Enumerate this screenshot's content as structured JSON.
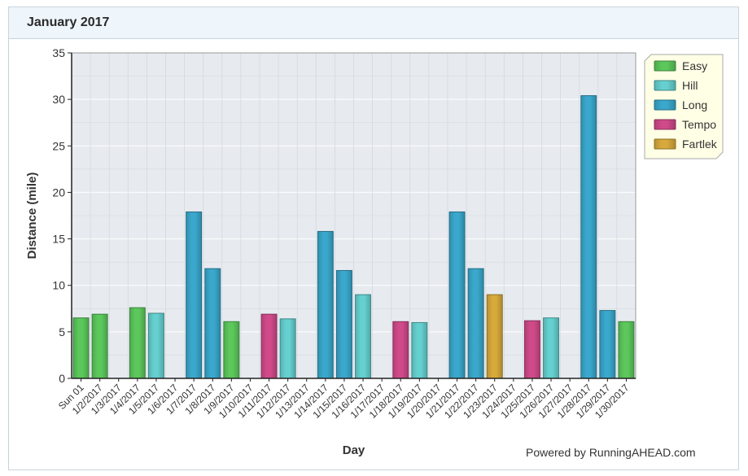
{
  "panel": {
    "title": "January 2017"
  },
  "footer": {
    "powered_by": "Powered by RunningAHEAD.com"
  },
  "colors": {
    "Easy": "#5cc85c",
    "Hill": "#66d0d0",
    "Long": "#3aa8cc",
    "Tempo": "#d04a8a",
    "Fartlek": "#d8aa3c",
    "plot_bg": "#e7ebf0",
    "grid": "#ffffff",
    "legend_bg": "#ffffe6"
  },
  "chart_data": {
    "type": "bar",
    "title": "",
    "xlabel": "Day",
    "ylabel": "Distance (mile)",
    "ylim": [
      0,
      35
    ],
    "yticks": [
      0,
      5,
      10,
      15,
      20,
      25,
      30,
      35
    ],
    "grid": true,
    "legend_position": "top-right",
    "legend": [
      "Easy",
      "Hill",
      "Long",
      "Tempo",
      "Fartlek"
    ],
    "categories": [
      "Sun 01",
      "1/2/2017",
      "1/3/2017",
      "1/4/2017",
      "1/5/2017",
      "1/6/2017",
      "1/7/2017",
      "1/8/2017",
      "1/9/2017",
      "1/10/2017",
      "1/11/2017",
      "1/12/2017",
      "1/13/2017",
      "1/14/2017",
      "1/15/2017",
      "1/16/2017",
      "1/17/2017",
      "1/18/2017",
      "1/19/2017",
      "1/20/2017",
      "1/21/2017",
      "1/22/2017",
      "1/23/2017",
      "1/24/2017",
      "1/25/2017",
      "1/26/2017",
      "1/27/2017",
      "1/28/2017",
      "1/29/2017",
      "1/30/2017"
    ],
    "values": [
      6.5,
      6.9,
      null,
      7.6,
      7.0,
      null,
      17.9,
      11.8,
      6.1,
      null,
      6.9,
      6.4,
      null,
      15.8,
      11.6,
      9.0,
      null,
      6.1,
      6.0,
      null,
      17.9,
      11.8,
      9.0,
      null,
      6.2,
      6.5,
      null,
      30.4,
      7.3,
      6.1
    ],
    "types": [
      "Easy",
      "Easy",
      null,
      "Easy",
      "Hill",
      null,
      "Long",
      "Long",
      "Easy",
      null,
      "Tempo",
      "Hill",
      null,
      "Long",
      "Long",
      "Hill",
      null,
      "Tempo",
      "Hill",
      null,
      "Long",
      "Long",
      "Fartlek",
      null,
      "Tempo",
      "Hill",
      null,
      "Long",
      "Long",
      "Easy"
    ]
  }
}
